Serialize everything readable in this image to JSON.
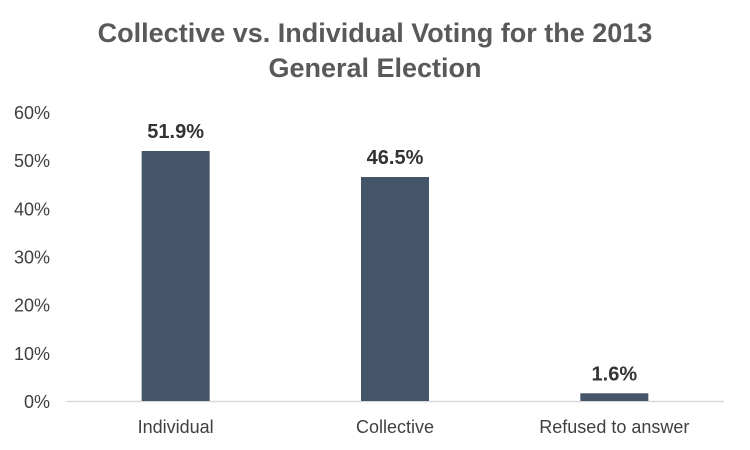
{
  "chart_data": {
    "type": "bar",
    "title_lines": [
      "Collective vs. Individual Voting for the 2013",
      "General Election"
    ],
    "categories": [
      "Individual",
      "Collective",
      "Refused to answer"
    ],
    "values": [
      51.9,
      46.5,
      1.6
    ],
    "data_labels": [
      "51.9%",
      "46.5%",
      "1.6%"
    ],
    "y_ticks": [
      0,
      10,
      20,
      30,
      40,
      50,
      60
    ],
    "y_tick_labels": [
      "0%",
      "10%",
      "20%",
      "30%",
      "40%",
      "50%",
      "60%"
    ],
    "ylim": [
      0,
      60
    ],
    "xlabel": "",
    "ylabel": "",
    "grid": false,
    "legend": "none"
  },
  "colors": {
    "bar": "#445469",
    "title": "#595959",
    "axis_text": "#404040",
    "label_text": "#333333",
    "axis_line": "#d9d9d9"
  }
}
